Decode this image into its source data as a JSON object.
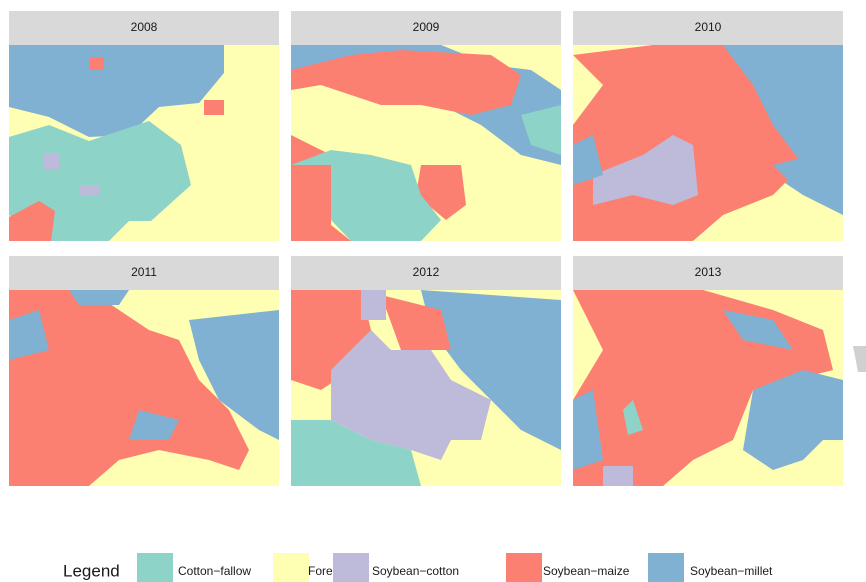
{
  "panels": [
    {
      "title": "2008"
    },
    {
      "title": "2009"
    },
    {
      "title": "2010"
    },
    {
      "title": "2011"
    },
    {
      "title": "2012"
    },
    {
      "title": "2013"
    }
  ],
  "legend": {
    "title": "Legend",
    "items": [
      {
        "label": "Cotton−fallow",
        "color": "#8dd3c7"
      },
      {
        "label": "Forest",
        "color": "#ffffb3"
      },
      {
        "label": "Soybean−cotton",
        "color": "#bebada"
      },
      {
        "label": "Soybean−maize",
        "color": "#fb8072"
      },
      {
        "label": "Soybean−millet",
        "color": "#80b1d3"
      }
    ]
  }
}
